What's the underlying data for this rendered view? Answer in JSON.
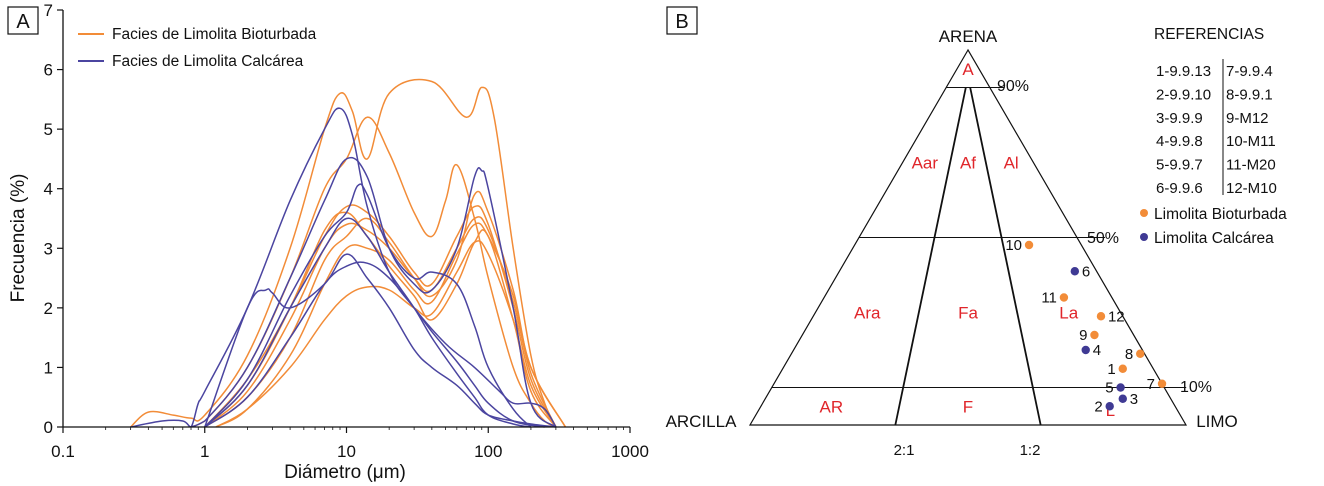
{
  "chart_data": [
    {
      "panel": "A",
      "type": "line",
      "title": "",
      "xlabel": "Diámetro (μm)",
      "ylabel": "Frecuencia (%)",
      "xscale": "log",
      "xlim": [
        0.1,
        1000
      ],
      "ylim": [
        0,
        7
      ],
      "xticks": [
        "0.1",
        "1",
        "10",
        "100",
        "1000"
      ],
      "yticks": [
        "0",
        "1",
        "2",
        "3",
        "4",
        "5",
        "6",
        "7"
      ],
      "grid": false,
      "legend_position": "top-left",
      "colors": {
        "bioturbada": "#f28c38",
        "calcarea": "#4b45a0"
      },
      "legend": [
        {
          "name": "Facies de Limolita Bioturbada",
          "color_key": "bioturbada"
        },
        {
          "name": "Facies de Limolita Calcárea",
          "color_key": "calcarea"
        }
      ],
      "series": [
        {
          "group": "bioturbada",
          "x": [
            0.3,
            0.4,
            0.6,
            0.8,
            1,
            2,
            4,
            7,
            9,
            11,
            14,
            20,
            40,
            70,
            90,
            110,
            150,
            200,
            250,
            300
          ],
          "y": [
            0,
            0.25,
            0.2,
            0.15,
            0.2,
            1.2,
            3,
            5,
            5.6,
            5.3,
            4.5,
            5.6,
            5.8,
            5.2,
            5.7,
            5.2,
            3,
            1.2,
            0.4,
            0
          ]
        },
        {
          "group": "bioturbada",
          "x": [
            0.8,
            1,
            2,
            4,
            7,
            10,
            14,
            20,
            30,
            40,
            50,
            60,
            80,
            100,
            150,
            200,
            250,
            300
          ],
          "y": [
            0,
            0.1,
            1,
            2.5,
            4,
            4.5,
            5.2,
            4.6,
            3.6,
            3.2,
            3.8,
            4.4,
            3.5,
            2.5,
            1,
            0.4,
            0.1,
            0
          ],
          "dash": []
        },
        {
          "group": "bioturbada",
          "x": [
            1,
            2,
            4,
            7,
            10,
            14,
            20,
            30,
            40,
            60,
            80,
            100,
            150,
            200,
            300
          ],
          "y": [
            0,
            0.8,
            2,
            3.2,
            3.7,
            3.6,
            3.2,
            2.6,
            2.4,
            3.2,
            3.7,
            3.4,
            2,
            0.8,
            0
          ]
        },
        {
          "group": "bioturbada",
          "x": [
            1,
            2,
            4,
            7,
            10,
            14,
            20,
            30,
            40,
            60,
            80,
            100,
            150,
            200,
            300
          ],
          "y": [
            0,
            0.6,
            1.8,
            3,
            3.4,
            3.3,
            3,
            2.5,
            2.3,
            3,
            3.5,
            3.3,
            2.1,
            0.9,
            0
          ]
        },
        {
          "group": "bioturbada",
          "x": [
            1,
            2,
            4,
            7,
            10,
            14,
            20,
            30,
            40,
            60,
            80,
            100,
            150,
            200,
            350
          ],
          "y": [
            0,
            0.5,
            1.5,
            2.8,
            3.2,
            3.5,
            3.1,
            2.5,
            2.2,
            2.8,
            3.9,
            3.6,
            2.3,
            1,
            0
          ]
        },
        {
          "group": "bioturbada",
          "x": [
            1.2,
            2,
            4,
            7,
            10,
            14,
            20,
            30,
            40,
            60,
            80,
            100,
            150,
            200,
            350
          ],
          "y": [
            0,
            0.3,
            1.2,
            2.4,
            3,
            3,
            2.8,
            2.3,
            2.1,
            2.9,
            3.4,
            3.2,
            2.2,
            1,
            0
          ]
        },
        {
          "group": "bioturbada",
          "x": [
            1.2,
            2,
            4,
            7,
            10,
            14,
            20,
            30,
            40,
            60,
            80,
            100,
            150,
            200,
            300
          ],
          "y": [
            0,
            0.3,
            1,
            1.8,
            2.2,
            2.35,
            2.3,
            2,
            1.9,
            2.6,
            3.1,
            2.9,
            1.8,
            0.7,
            0
          ]
        },
        {
          "group": "bioturbada",
          "x": [
            1,
            2,
            4,
            7,
            10,
            14,
            20,
            30,
            40,
            60,
            80,
            100,
            150,
            200,
            300
          ],
          "y": [
            0,
            0.7,
            2,
            3.3,
            3.6,
            3.2,
            2.7,
            2.2,
            1.8,
            2.4,
            3.1,
            3.2,
            1.8,
            0.6,
            0
          ]
        },
        {
          "group": "calcarea",
          "x": [
            0.3,
            0.5,
            0.7,
            0.8,
            0.9,
            1,
            2,
            4,
            7,
            9,
            11,
            14,
            20,
            30,
            50,
            80,
            120,
            150,
            200,
            250,
            300
          ],
          "y": [
            0,
            0.1,
            0.1,
            0,
            0.4,
            0.6,
            2,
            3.8,
            5,
            5.35,
            4.9,
            3.7,
            2.6,
            2,
            1.4,
            1,
            0.6,
            0.4,
            0.4,
            0.3,
            0
          ],
          "dash": []
        },
        {
          "group": "calcarea",
          "x": [
            0.8,
            1,
            2,
            4,
            7,
            10,
            14,
            20,
            30,
            40,
            60,
            80,
            90,
            100,
            150,
            200,
            300
          ],
          "y": [
            0,
            0.1,
            1,
            2.5,
            3.8,
            4.5,
            4.2,
            3,
            2.4,
            2.3,
            3,
            4.2,
            4.3,
            4,
            2,
            0.4,
            0
          ]
        },
        {
          "group": "calcarea",
          "x": [
            1,
            2,
            2.7,
            3,
            4,
            7,
            10,
            14,
            20,
            30,
            40,
            60,
            80,
            100,
            150,
            200,
            300
          ],
          "y": [
            0,
            2,
            2.3,
            2.25,
            2,
            2.4,
            2.9,
            2.5,
            2,
            1.3,
            1,
            0.7,
            0.4,
            0.2,
            0.1,
            0.05,
            0
          ]
        },
        {
          "group": "calcarea",
          "x": [
            1,
            2,
            4,
            7,
            10,
            12,
            14,
            20,
            30,
            40,
            60,
            80,
            100,
            150,
            200
          ],
          "y": [
            0,
            0.8,
            2.2,
            3.2,
            3.6,
            4.05,
            3.9,
            3,
            2.5,
            2.6,
            2.4,
            1.7,
            1,
            0.3,
            0
          ]
        },
        {
          "group": "calcarea",
          "x": [
            1,
            2,
            4,
            7,
            10,
            14,
            20,
            30,
            40,
            60,
            80,
            100,
            150,
            250
          ],
          "y": [
            0,
            0.5,
            1.5,
            2.4,
            2.7,
            2.75,
            2.5,
            2,
            1.6,
            1.1,
            0.7,
            0.4,
            0.1,
            0
          ]
        },
        {
          "group": "calcarea",
          "x": [
            1,
            2,
            4,
            7,
            10,
            14,
            20,
            30,
            40,
            60,
            80,
            100,
            150,
            200
          ],
          "y": [
            0,
            0.7,
            2,
            3,
            3.5,
            3.2,
            2.6,
            2,
            1.5,
            0.9,
            0.5,
            0.2,
            0.05,
            0
          ]
        }
      ]
    },
    {
      "panel": "B",
      "type": "ternary",
      "apex_top": "ARENA",
      "apex_left": "ARCILLA",
      "apex_right": "LIMO",
      "percent_labels": [
        "90%",
        "50%",
        "10%"
      ],
      "ratio_labels": [
        "2:1",
        "1:2"
      ],
      "fields": [
        {
          "label": "A",
          "sand": 95,
          "silt_ratio": 0.5
        },
        {
          "label": "Aar",
          "sand": 70,
          "silt_ratio": 0.17
        },
        {
          "label": "Af",
          "sand": 70,
          "silt_ratio": 0.5
        },
        {
          "label": "Al",
          "sand": 70,
          "silt_ratio": 0.83
        },
        {
          "label": "Ara",
          "sand": 30,
          "silt_ratio": 0.17
        },
        {
          "label": "Fa",
          "sand": 30,
          "silt_ratio": 0.5
        },
        {
          "label": "La",
          "sand": 30,
          "silt_ratio": 0.83
        },
        {
          "label": "AR",
          "sand": 5,
          "silt_ratio": 0.17
        },
        {
          "label": "F",
          "sand": 5,
          "silt_ratio": 0.5
        },
        {
          "label": "L",
          "sand": 4,
          "silt_ratio": 0.84
        }
      ],
      "references_title": "REFERENCIAS",
      "references": [
        [
          "1-9.9.13",
          "7-9.9.4"
        ],
        [
          "2-9.9.10",
          "8-9.9.1"
        ],
        [
          "3-9.9.9",
          "9-M12"
        ],
        [
          "4-9.9.8",
          "10-M11"
        ],
        [
          "5-9.9.7",
          "11-M20"
        ],
        [
          "6-9.9.6",
          "12-M10"
        ]
      ],
      "legend": [
        {
          "name": "Limolita Bioturbada",
          "color_key": "bioturbada"
        },
        {
          "name": "Limolita Calcárea",
          "color_key": "calcarea"
        }
      ],
      "colors": {
        "bioturbada": "#f28c38",
        "calcarea": "#3f3a94",
        "field_label": "#e0262b"
      },
      "points": [
        {
          "label": "1",
          "group": "bioturbada",
          "sand": 15,
          "silt": 78,
          "clay": 7
        },
        {
          "label": "2",
          "group": "calcarea",
          "sand": 5,
          "silt": 80,
          "clay": 15
        },
        {
          "label": "3",
          "group": "calcarea",
          "sand": 7,
          "silt": 82,
          "clay": 11
        },
        {
          "label": "4",
          "group": "calcarea",
          "sand": 20,
          "silt": 67,
          "clay": 13
        },
        {
          "label": "5",
          "group": "calcarea",
          "sand": 10,
          "silt": 80,
          "clay": 10
        },
        {
          "label": "6",
          "group": "calcarea",
          "sand": 41,
          "silt": 54,
          "clay": 5
        },
        {
          "label": "7",
          "group": "bioturbada",
          "sand": 11,
          "silt": 89,
          "clay": 0
        },
        {
          "label": "8",
          "group": "bioturbada",
          "sand": 19,
          "silt": 80,
          "clay": 1
        },
        {
          "label": "9",
          "group": "bioturbada",
          "sand": 24,
          "silt": 67,
          "clay": 9
        },
        {
          "label": "10",
          "group": "bioturbada",
          "sand": 48,
          "silt": 40,
          "clay": 12
        },
        {
          "label": "11",
          "group": "bioturbada",
          "sand": 34,
          "silt": 55,
          "clay": 11
        },
        {
          "label": "12",
          "group": "bioturbada",
          "sand": 29,
          "silt": 66,
          "clay": 5
        }
      ]
    }
  ]
}
